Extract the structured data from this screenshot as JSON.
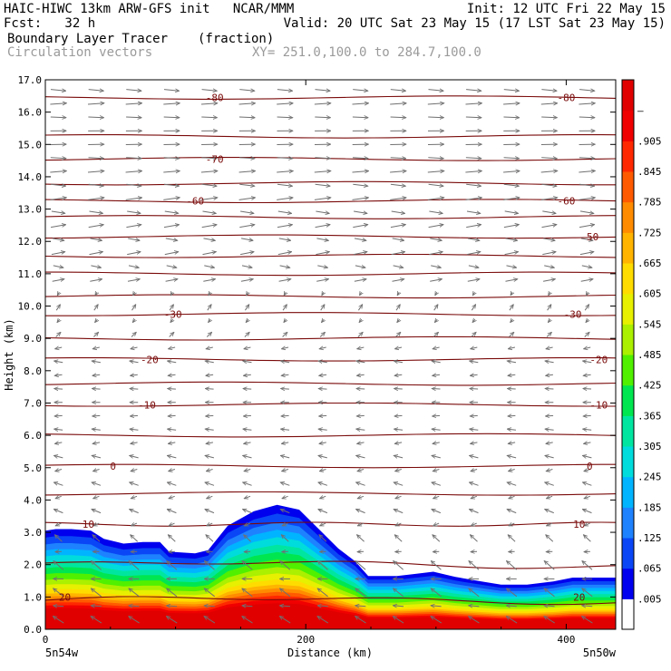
{
  "header": {
    "model_line": "HAIC-HIWC 13km ARW-GFS init   NCAR/MMM",
    "fcst_line": "Fcst:   32 h",
    "init_line": "Init: 12 UTC Fri 22 May 15",
    "valid_line": "Valid: 20 UTC Sat 23 May 15 (17 LST Sat 23 May 15)",
    "field_name": "Boundary Layer Tracer",
    "field_units": "(fraction)",
    "vector_label": "Circulation vectors",
    "xy_label": "XY= 251.0,100.0 to 284.7,100.0"
  },
  "chart_data": {
    "type": "heatmap",
    "title": "Boundary Layer Tracer",
    "units": "(fraction)",
    "xlabel": "Distance (km)",
    "ylabel": "Height (km)",
    "xlim": [
      0,
      438
    ],
    "ylim": [
      0,
      17
    ],
    "x_ticks": [
      0,
      200,
      400
    ],
    "x_tick_labels": [
      "0",
      "200",
      "400"
    ],
    "y_ticks": [
      0,
      1,
      2,
      3,
      4,
      5,
      6,
      7,
      8,
      9,
      10,
      11,
      12,
      13,
      14,
      15,
      16,
      17
    ],
    "y_tick_labels": [
      "0.0",
      "1.0",
      "2.0",
      "3.0",
      "4.0",
      "5.0",
      "6.0",
      "7.0",
      "8.0",
      "9.0",
      "10.0",
      "11.0",
      "12.0",
      "13.0",
      "14.0",
      "15.0",
      "16.0",
      "17.0"
    ],
    "x_endpoint_labels": {
      "left": "5n54w",
      "right": "5n50w"
    },
    "colorbar": {
      "labels": [
        ".005",
        ".065",
        ".125",
        ".185",
        ".245",
        ".305",
        ".365",
        ".425",
        ".485",
        ".545",
        ".605",
        ".665",
        ".725",
        ".785",
        ".845",
        ".905",
        "–"
      ],
      "colors": [
        "#ffffff",
        "#0000ee",
        "#0a46f5",
        "#1e82ff",
        "#00b4ff",
        "#00dcdc",
        "#00e6a0",
        "#00e650",
        "#50f000",
        "#aaf000",
        "#e6f000",
        "#ffdc00",
        "#ffb400",
        "#ff8c00",
        "#ff5a00",
        "#ff2800",
        "#f00000",
        "#e00000"
      ]
    },
    "bl_top_height_km": [
      [
        0,
        3.05
      ],
      [
        8,
        3.1
      ],
      [
        20,
        3.1
      ],
      [
        35,
        3.05
      ],
      [
        45,
        2.8
      ],
      [
        60,
        2.65
      ],
      [
        75,
        2.7
      ],
      [
        88,
        2.7
      ],
      [
        95,
        2.4
      ],
      [
        115,
        2.35
      ],
      [
        125,
        2.45
      ],
      [
        140,
        3.2
      ],
      [
        160,
        3.65
      ],
      [
        178,
        3.85
      ],
      [
        195,
        3.7
      ],
      [
        210,
        3.1
      ],
      [
        225,
        2.5
      ],
      [
        238,
        2.1
      ],
      [
        248,
        1.65
      ],
      [
        270,
        1.65
      ],
      [
        285,
        1.72
      ],
      [
        298,
        1.78
      ],
      [
        315,
        1.62
      ],
      [
        335,
        1.48
      ],
      [
        350,
        1.38
      ],
      [
        370,
        1.38
      ],
      [
        390,
        1.48
      ],
      [
        405,
        1.6
      ],
      [
        420,
        1.6
      ],
      [
        438,
        1.6
      ]
    ],
    "contour_series": {
      "name": "temperature contours",
      "labels": [
        {
          "value": "20",
          "x": 15,
          "y": 1.0
        },
        {
          "value": "10",
          "x": 33,
          "y": 3.25
        },
        {
          "value": "0",
          "x": 52,
          "y": 5.05
        },
        {
          "value": "-10",
          "x": 78,
          "y": 6.95
        },
        {
          "value": "-20",
          "x": 80,
          "y": 8.35
        },
        {
          "value": "-30",
          "x": 98,
          "y": 9.75
        },
        {
          "value": "-60",
          "x": 115,
          "y": 13.25
        },
        {
          "value": "-70",
          "x": 130,
          "y": 14.55
        },
        {
          "value": "-80",
          "x": 130,
          "y": 16.45
        },
        {
          "value": "20",
          "x": 410,
          "y": 1.0
        },
        {
          "value": "10",
          "x": 410,
          "y": 3.25
        },
        {
          "value": "0",
          "x": 418,
          "y": 5.05
        },
        {
          "value": "-10",
          "x": 425,
          "y": 6.95
        },
        {
          "value": "-20",
          "x": 425,
          "y": 8.35
        },
        {
          "value": "-30",
          "x": 405,
          "y": 9.75
        },
        {
          "value": "-50",
          "x": 418,
          "y": 12.15
        },
        {
          "value": "-60",
          "x": 400,
          "y": 13.25
        },
        {
          "value": "-80",
          "x": 400,
          "y": 16.45
        }
      ],
      "level_heights_km": [
        0.9,
        2.0,
        3.25,
        4.2,
        5.05,
        6.0,
        6.95,
        7.6,
        8.35,
        9.0,
        9.75,
        10.3,
        11.0,
        11.55,
        12.15,
        12.75,
        13.25,
        13.8,
        14.55,
        15.25,
        16.45
      ]
    },
    "vectors": {
      "name": "Circulation vectors",
      "upper_direction": "east",
      "lower_direction": "west",
      "reversal_height_km": 10.5
    },
    "grid": false,
    "legend": "right"
  }
}
